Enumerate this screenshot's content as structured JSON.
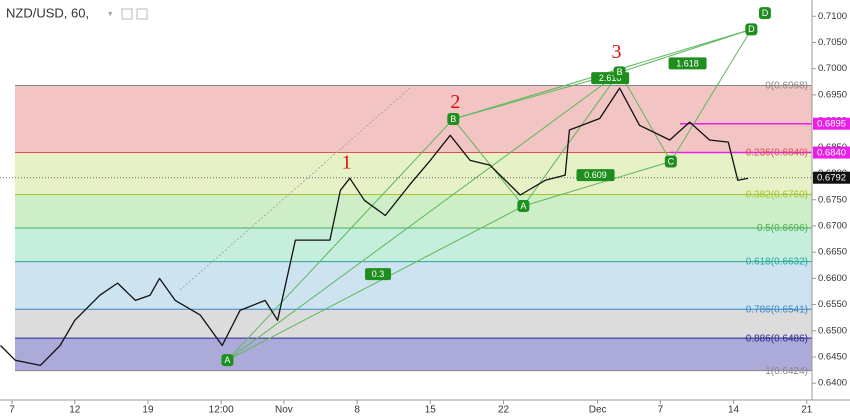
{
  "chart_data": {
    "type": "line",
    "title": "NZD/USD, 60,",
    "xlim": [
      -1.15,
      76.5
    ],
    "ylim": [
      0.6368,
      0.7131
    ],
    "xticks": [
      {
        "value": 0,
        "label": "7"
      },
      {
        "value": 6,
        "label": "12"
      },
      {
        "value": 13,
        "label": "19"
      },
      {
        "value": 20,
        "label": "12:00"
      },
      {
        "value": 26,
        "label": "Nov"
      },
      {
        "value": 33,
        "label": "8"
      },
      {
        "value": 40,
        "label": "15"
      },
      {
        "value": 47,
        "label": "22"
      },
      {
        "value": 56,
        "label": "Dec"
      },
      {
        "value": 62,
        "label": "7"
      },
      {
        "value": 69,
        "label": "14"
      },
      {
        "value": 76,
        "label": "21"
      }
    ],
    "yticks": [
      {
        "value": 0.64,
        "label": "0.6400"
      },
      {
        "value": 0.645,
        "label": "0.6450"
      },
      {
        "value": 0.65,
        "label": "0.6500"
      },
      {
        "value": 0.655,
        "label": "0.6550"
      },
      {
        "value": 0.66,
        "label": "0.6600"
      },
      {
        "value": 0.665,
        "label": "0.6650"
      },
      {
        "value": 0.67,
        "label": "0.6700"
      },
      {
        "value": 0.675,
        "label": "0.6750"
      },
      {
        "value": 0.68,
        "label": "0.6800"
      },
      {
        "value": 0.685,
        "label": "0.6850"
      },
      {
        "value": 0.69,
        "label": "0.6900"
      },
      {
        "value": 0.695,
        "label": "0.6950"
      },
      {
        "value": 0.7,
        "label": "0.7000"
      },
      {
        "value": 0.705,
        "label": "0.7050"
      },
      {
        "value": 0.71,
        "label": "0.7100"
      }
    ],
    "series": [
      {
        "color": "#111111",
        "x": [
          -1.1,
          0.3,
          2.7,
          4.6,
          6.0,
          8.4,
          10.1,
          11.8,
          13.2,
          14.1,
          15.6,
          18.0,
          20.1,
          21.8,
          24.2,
          25.4,
          27.1,
          30.4,
          31.4,
          32.3,
          33.7,
          35.7,
          38.0,
          40.0,
          41.9,
          43.8,
          45.7,
          48.6,
          51.0,
          52.9,
          53.3,
          56.2,
          58.1,
          60.0,
          62.9,
          64.8,
          66.7,
          68.5,
          69.4,
          70.4
        ],
        "values": [
          0.6472,
          0.6444,
          0.6434,
          0.6472,
          0.652,
          0.6568,
          0.6591,
          0.6558,
          0.6568,
          0.66,
          0.6558,
          0.653,
          0.6472,
          0.6539,
          0.6558,
          0.652,
          0.6673,
          0.6673,
          0.6768,
          0.6791,
          0.6749,
          0.672,
          0.6778,
          0.6825,
          0.6873,
          0.6825,
          0.6816,
          0.6759,
          0.6787,
          0.6797,
          0.6883,
          0.6905,
          0.6963,
          0.6892,
          0.6864,
          0.6898,
          0.6864,
          0.686,
          0.6787,
          0.6791
        ]
      }
    ],
    "fib_levels": [
      {
        "label": "0(0.6968)",
        "value": 0.6968,
        "color": "#888888",
        "fill": "#f2c4c4"
      },
      {
        "label": "0.236(0.6840)",
        "value": 0.684,
        "color": "#e05050",
        "fill": "#e6f1c6"
      },
      {
        "label": "0.382(0.6760)",
        "value": 0.676,
        "color": "#a5c52a",
        "fill": "#cdeec6"
      },
      {
        "label": "0.5(0.6696)",
        "value": 0.6696,
        "color": "#4caf50",
        "fill": "#c6eedd"
      },
      {
        "label": "0.618(0.6632)",
        "value": 0.6632,
        "color": "#26a69a",
        "fill": "#cde4f0"
      },
      {
        "label": "0.786(0.6541)",
        "value": 0.6541,
        "color": "#3d85c6",
        "fill": "#dcdcdc"
      },
      {
        "label": "0.886(0.6486)",
        "value": 0.6486,
        "color": "#2a2a8f",
        "fill": "#abaad8"
      },
      {
        "label": "1(0.6424)",
        "value": 0.6424,
        "color": "#888888"
      }
    ],
    "price_tags": [
      {
        "value": 0.6895,
        "label": "0.6895",
        "color": "#e91ee9"
      },
      {
        "value": 0.684,
        "label": "0.6840",
        "color": "#e91ee9"
      },
      {
        "value": 0.6792,
        "label": "0.6792",
        "color": "#111111"
      }
    ],
    "pattern_points": [
      {
        "label": "A",
        "x": 20.6,
        "y": 0.6444
      },
      {
        "label": "B",
        "x": 42.2,
        "y": 0.6904
      },
      {
        "label": "A",
        "x": 48.9,
        "y": 0.6738
      },
      {
        "label": "B",
        "x": 58.1,
        "y": 0.6993
      },
      {
        "label": "C",
        "x": 63.0,
        "y": 0.6823
      },
      {
        "label": "D",
        "x": 70.7,
        "y": 0.7075
      },
      {
        "label": "D",
        "x": 72.0,
        "y": 0.7106
      }
    ],
    "ratio_labels": [
      {
        "label": "0.3",
        "x": 35.0,
        "y": 0.6608
      },
      {
        "label": "0.609",
        "x": 55.8,
        "y": 0.6797
      },
      {
        "label": "2.618",
        "x": 57.2,
        "y": 0.6982
      },
      {
        "label": "1.618",
        "x": 64.6,
        "y": 0.701
      }
    ],
    "wave_labels": [
      {
        "label": "1",
        "x": 32.0,
        "y": 0.6818
      },
      {
        "label": "2",
        "x": 42.4,
        "y": 0.6934
      },
      {
        "label": "3",
        "x": 57.8,
        "y": 0.7029
      }
    ]
  }
}
